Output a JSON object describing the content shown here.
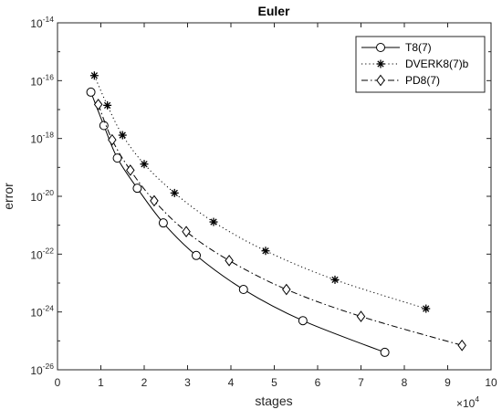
{
  "chart_data": {
    "type": "line",
    "title": "Euler",
    "xlabel": "stages",
    "ylabel": "error",
    "x_multiplier_label": "×10",
    "x_multiplier_exponent": "4",
    "xlim": [
      0,
      100000
    ],
    "ylim_exponent": [
      -26,
      -14
    ],
    "y_scale": "log",
    "x_ticks": [
      "0",
      "1",
      "2",
      "3",
      "4",
      "5",
      "6",
      "7",
      "8",
      "9",
      "10"
    ],
    "y_ticks": [
      {
        "base": "10",
        "exp": "-14"
      },
      {
        "base": "10",
        "exp": "-16"
      },
      {
        "base": "10",
        "exp": "-18"
      },
      {
        "base": "10",
        "exp": "-20"
      },
      {
        "base": "10",
        "exp": "-22"
      },
      {
        "base": "10",
        "exp": "-24"
      },
      {
        "base": "10",
        "exp": "-26"
      }
    ],
    "grid": false,
    "legend_position": "top-right",
    "series": [
      {
        "name": "T8(7)",
        "line": "solid",
        "marker": "circle",
        "x": [
          7700,
          10700,
          13800,
          18400,
          24400,
          32000,
          42900,
          56600,
          75500
        ],
        "y": [
          4e-17,
          2.8e-18,
          2.1e-19,
          1.9e-20,
          1.2e-21,
          9e-23,
          6e-24,
          5e-25,
          4e-26
        ]
      },
      {
        "name": "DVERK8(7)b",
        "line": "dotted",
        "marker": "asterisk",
        "x": [
          8500,
          11500,
          15000,
          20000,
          27000,
          36000,
          48000,
          64000,
          85000
        ],
        "y": [
          1.5e-16,
          1.4e-17,
          1.3e-18,
          1.3e-19,
          1.3e-20,
          1.3e-21,
          1.3e-22,
          1.3e-23,
          1.3e-24
        ]
      },
      {
        "name": "PD8(7)",
        "line": "dash-dot",
        "marker": "diamond",
        "x": [
          9400,
          12600,
          16800,
          22300,
          29700,
          39600,
          52800,
          70000,
          93300
        ],
        "y": [
          1.5e-17,
          9e-19,
          8e-20,
          7e-21,
          6e-22,
          6e-23,
          6e-24,
          7e-25,
          7e-26
        ]
      }
    ],
    "colors": {
      "axis": "#262626",
      "series": "#000000"
    }
  }
}
